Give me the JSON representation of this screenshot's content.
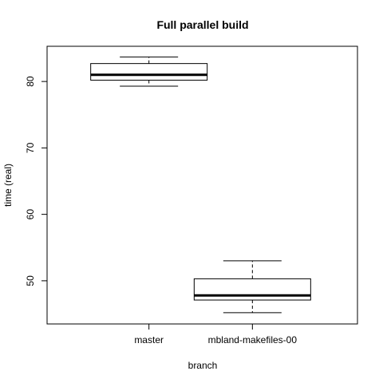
{
  "chart_data": {
    "type": "boxplot",
    "title": "Full parallel build",
    "xlabel": "branch",
    "ylabel": "time (real)",
    "categories": [
      "master",
      "mbland-makefiles-00"
    ],
    "boxes": [
      {
        "category": "master",
        "min": 79.3,
        "q1": 80.2,
        "median": 81.0,
        "q3": 82.7,
        "max": 83.7
      },
      {
        "category": "mbland-makefiles-00",
        "min": 45.2,
        "q1": 47.1,
        "median": 47.8,
        "q3": 50.3,
        "max": 53.0
      }
    ],
    "ylim": [
      43.5,
      85.3
    ],
    "yticks": [
      50,
      60,
      70,
      80
    ],
    "grid": false,
    "legend": "none"
  }
}
